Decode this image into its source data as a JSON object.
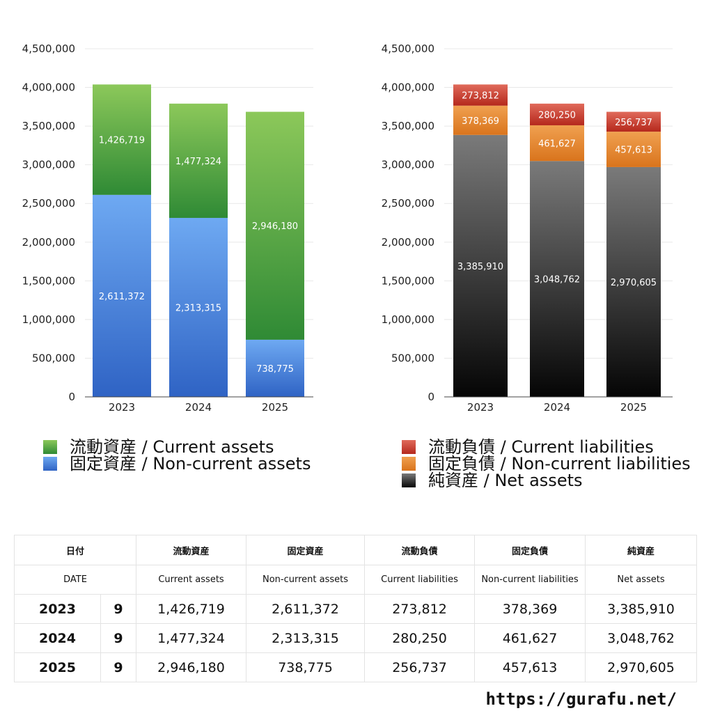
{
  "chart_data": [
    {
      "type": "bar",
      "stacked": true,
      "categories": [
        "2023",
        "2024",
        "2025"
      ],
      "series": [
        {
          "name": "固定資産 / Non-current assets",
          "values": [
            2611372,
            2313315,
            738775
          ],
          "color_top": "#6ea9f2",
          "color_bottom": "#2f63c4"
        },
        {
          "name": "流動資産 / Current assets",
          "values": [
            1426719,
            1477324,
            2946180
          ],
          "color_top": "#8cc85a",
          "color_bottom": "#2f8a35"
        }
      ],
      "data_labels": [
        [
          "2,611,372",
          "2,313,315",
          "738,775"
        ],
        [
          "1,426,719",
          "1,477,324",
          "2,946,180"
        ]
      ],
      "yticks": [
        "0",
        "500,000",
        "1,000,000",
        "1,500,000",
        "2,000,000",
        "2,500,000",
        "3,000,000",
        "3,500,000",
        "4,000,000",
        "4,500,000"
      ],
      "ylim": [
        0,
        4500000
      ],
      "grid": true,
      "legend_position": "bottom"
    },
    {
      "type": "bar",
      "stacked": true,
      "categories": [
        "2023",
        "2024",
        "2025"
      ],
      "series": [
        {
          "name": "純資産 / Net assets",
          "values": [
            3385910,
            3048762,
            2970605
          ],
          "color_top": "#7a7a7a",
          "color_bottom": "#050505"
        },
        {
          "name": "固定負債 / Non-current liabilities",
          "values": [
            378369,
            461627,
            457613
          ],
          "color_top": "#f0a050",
          "color_bottom": "#d9741c"
        },
        {
          "name": "流動負債 / Current liabilities",
          "values": [
            273812,
            280250,
            256737
          ],
          "color_top": "#e06a5a",
          "color_bottom": "#b5281c"
        }
      ],
      "data_labels": [
        [
          "3,385,910",
          "3,048,762",
          "2,970,605"
        ],
        [
          "378,369",
          "461,627",
          "457,613"
        ],
        [
          "273,812",
          "280,250",
          "256,737"
        ]
      ],
      "yticks": [
        "0",
        "500,000",
        "1,000,000",
        "1,500,000",
        "2,000,000",
        "2,500,000",
        "3,000,000",
        "3,500,000",
        "4,000,000",
        "4,500,000"
      ],
      "ylim": [
        0,
        4500000
      ],
      "grid": true,
      "legend_position": "bottom"
    }
  ],
  "legend_left": [
    {
      "label": "流動資産 / Current assets",
      "color": "#5aa845"
    },
    {
      "label": "固定資産 / Non-current assets",
      "color": "#4a86de"
    }
  ],
  "legend_right": [
    {
      "label": "流動負債 / Current liabilities",
      "color": "#d44a3a"
    },
    {
      "label": "固定負債 / Non-current liabilities",
      "color": "#e8892e"
    },
    {
      "label": "純資産 / Net assets",
      "color": "#222222"
    }
  ],
  "table": {
    "header_jp": [
      "日付",
      "流動資産",
      "固定資産",
      "流動負債",
      "固定負債",
      "純資産"
    ],
    "header_en": [
      "DATE",
      "Current assets",
      "Non-current assets",
      "Current liabilities",
      "Non-current liabilities",
      "Net assets"
    ],
    "rows": [
      {
        "year": "2023",
        "month": "9",
        "values": [
          "1,426,719",
          "2,611,372",
          "273,812",
          "378,369",
          "3,385,910"
        ]
      },
      {
        "year": "2024",
        "month": "9",
        "values": [
          "1,477,324",
          "2,313,315",
          "280,250",
          "461,627",
          "3,048,762"
        ]
      },
      {
        "year": "2025",
        "month": "9",
        "values": [
          "2,946,180",
          "738,775",
          "256,737",
          "457,613",
          "2,970,605"
        ]
      }
    ]
  },
  "footer_url": "https://gurafu.net/"
}
